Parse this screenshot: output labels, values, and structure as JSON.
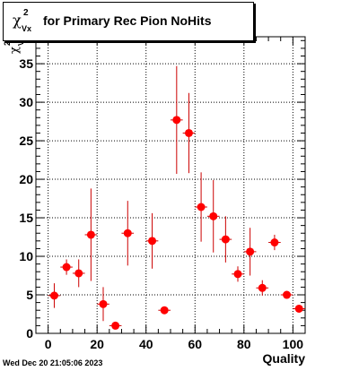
{
  "title": {
    "symbol": "χ",
    "superscript": "2",
    "subscript": "Vx",
    "text": "for Primary Rec Pion NoHits"
  },
  "timestamp": "Wed Dec 20 21:05:06 2023",
  "chart_data": {
    "type": "scatter",
    "title": "χ²_Vx for Primary Rec Pion NoHits",
    "xlabel": "Quality",
    "ylabel": "χ²_Vx",
    "xlim": [
      -5,
      105
    ],
    "ylim": [
      0,
      38.5
    ],
    "x_ticks": [
      0,
      20,
      40,
      60,
      80,
      100
    ],
    "y_ticks": [
      0,
      5,
      10,
      15,
      20,
      25,
      30,
      35
    ],
    "grid": true,
    "marker_color": "#ff0000",
    "error_color": "#cc0000",
    "points": [
      {
        "x": 2.5,
        "y": 4.9,
        "err": 1.6
      },
      {
        "x": 7.5,
        "y": 8.6,
        "err": 1.0
      },
      {
        "x": 12.5,
        "y": 7.8,
        "err": 1.8
      },
      {
        "x": 17.5,
        "y": 12.8,
        "err": 6.0
      },
      {
        "x": 22.5,
        "y": 3.8,
        "err": 2.2
      },
      {
        "x": 27.5,
        "y": 1.0,
        "err": 0.3
      },
      {
        "x": 32.5,
        "y": 13.0,
        "err": 4.2
      },
      {
        "x": 42.5,
        "y": 12.0,
        "err": 3.6
      },
      {
        "x": 47.5,
        "y": 3.0,
        "err": 0.3
      },
      {
        "x": 52.5,
        "y": 27.7,
        "err": 7.0
      },
      {
        "x": 57.5,
        "y": 26.0,
        "err": 5.2
      },
      {
        "x": 62.5,
        "y": 16.4,
        "err": 4.5
      },
      {
        "x": 67.5,
        "y": 15.2,
        "err": 4.7
      },
      {
        "x": 72.5,
        "y": 12.2,
        "err": 3.0
      },
      {
        "x": 77.5,
        "y": 7.7,
        "err": 1.0
      },
      {
        "x": 82.5,
        "y": 10.6,
        "err": 3.1
      },
      {
        "x": 87.5,
        "y": 5.9,
        "err": 1.0
      },
      {
        "x": 92.5,
        "y": 11.8,
        "err": 1.0
      },
      {
        "x": 97.5,
        "y": 5.0,
        "err": 0.3
      },
      {
        "x": 102.5,
        "y": 3.2,
        "err": 0.3
      }
    ]
  }
}
